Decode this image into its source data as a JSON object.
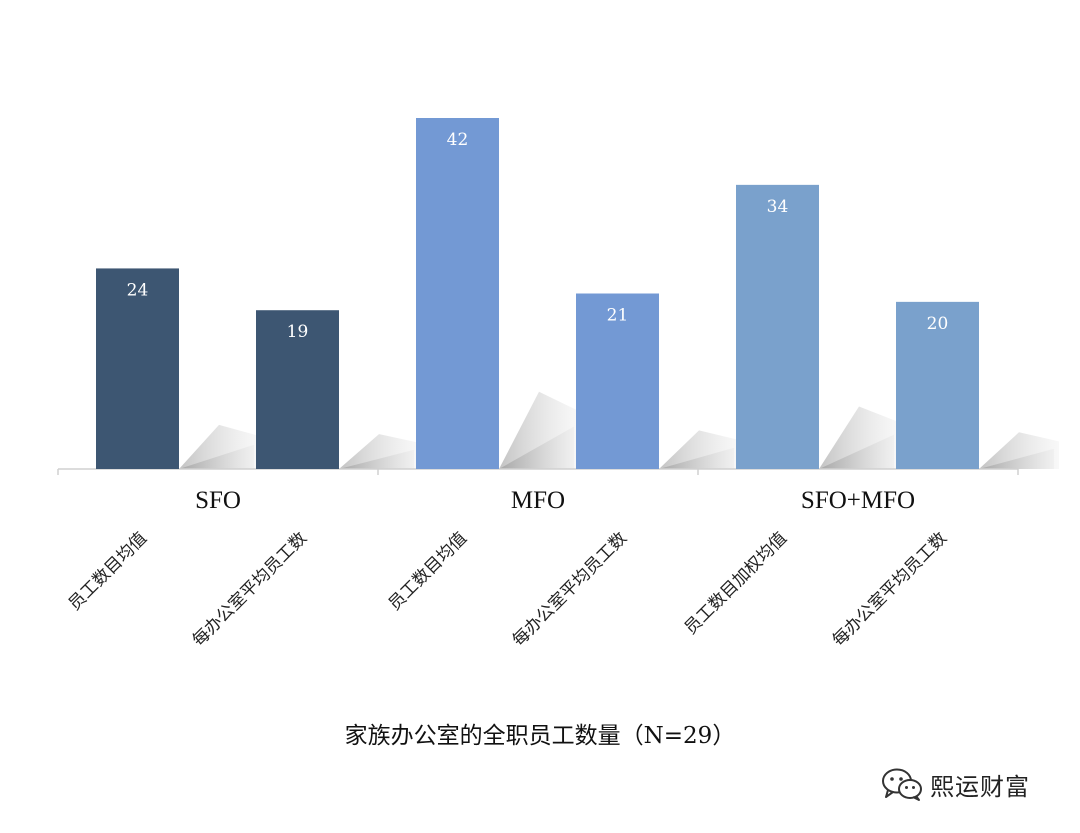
{
  "chart_data": {
    "type": "bar",
    "title": "家族办公室的全职员工数量（N=29）",
    "groups": [
      {
        "name": "SFO",
        "color": "#3d5672",
        "bars": [
          {
            "category": "员工数目均值",
            "value": 24
          },
          {
            "category": "每办公室平均员工数",
            "value": 19
          }
        ]
      },
      {
        "name": "MFO",
        "color": "#7399d4",
        "bars": [
          {
            "category": "员工数目均值",
            "value": 42
          },
          {
            "category": "每办公室平均员工数",
            "value": 21
          }
        ]
      },
      {
        "name": "SFO+MFO",
        "color": "#7aa1cc",
        "bars": [
          {
            "category": "员工数目加权均值",
            "value": 34
          },
          {
            "category": "每办公室平均员工数",
            "value": 20
          }
        ]
      }
    ],
    "ylim": [
      0,
      42
    ],
    "grid": false,
    "legend": "none",
    "data_labels": "inside-top"
  },
  "watermark": {
    "icon": "wechat-icon",
    "text": "熙运财富"
  }
}
